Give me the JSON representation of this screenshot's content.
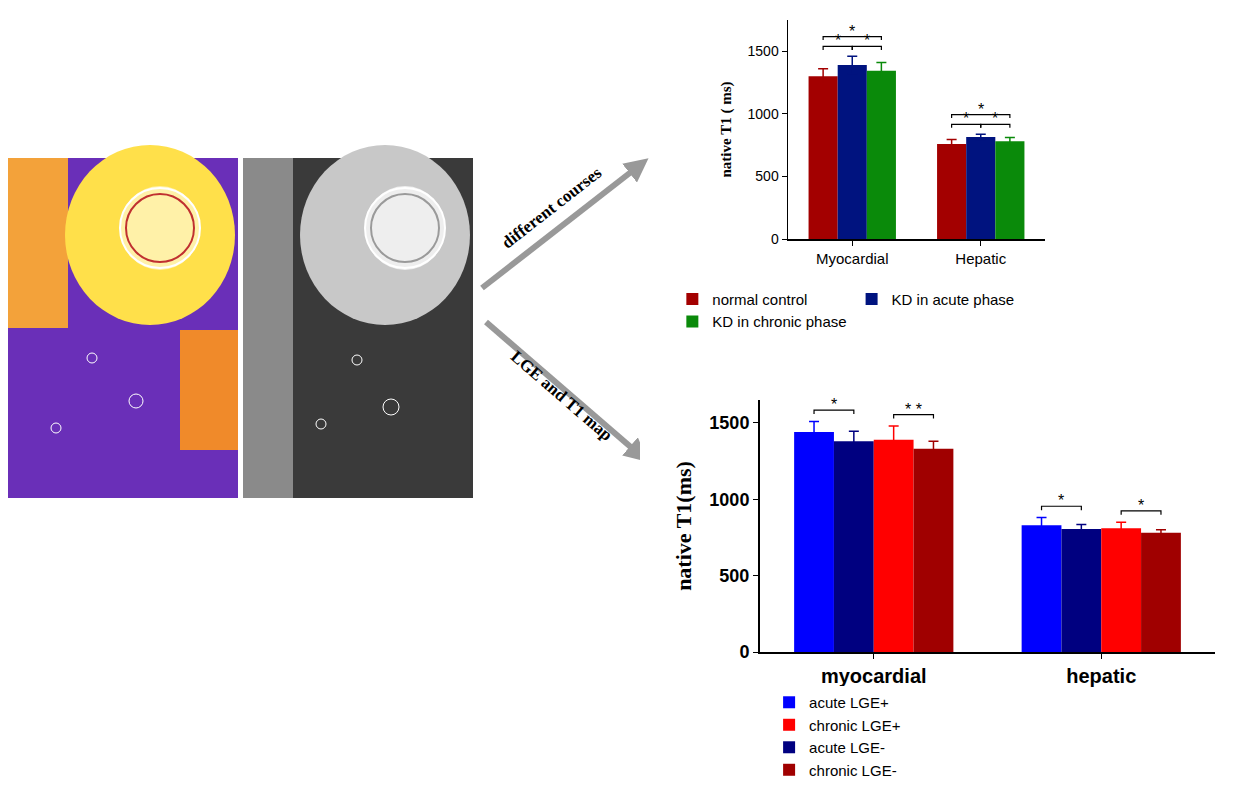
{
  "chart_data": [
    {
      "type": "bar",
      "annotations": [
        "different courses"
      ],
      "ylabel": "native T1 ( ms)",
      "categories": [
        "Myocardial",
        "Hepatic"
      ],
      "series": [
        {
          "name": "normal control",
          "color": "#a30000",
          "values": [
            1300,
            760
          ],
          "error": [
            60,
            35
          ]
        },
        {
          "name": "KD in acute phase",
          "color": "#00137f",
          "values": [
            1390,
            815
          ],
          "error": [
            70,
            22
          ]
        },
        {
          "name": "KD in chronic phase",
          "color": "#0a8a0a",
          "values": [
            1345,
            782
          ],
          "error": [
            65,
            30
          ]
        }
      ],
      "ylim": [
        0,
        1750
      ],
      "yticks": [
        0,
        500,
        1000,
        1500
      ],
      "grid": false,
      "legend": "bottom",
      "significance": [
        {
          "category": "Myocardial",
          "pair": [
            "normal control",
            "KD in acute phase"
          ],
          "label": "*"
        },
        {
          "category": "Myocardial",
          "pair": [
            "KD in acute phase",
            "KD in chronic phase"
          ],
          "label": "*"
        },
        {
          "category": "Myocardial",
          "pair": [
            "normal control",
            "KD in chronic phase"
          ],
          "label": "*"
        },
        {
          "category": "Hepatic",
          "pair": [
            "normal control",
            "KD in acute phase"
          ],
          "label": "*"
        },
        {
          "category": "Hepatic",
          "pair": [
            "KD in acute phase",
            "KD in chronic phase"
          ],
          "label": "*"
        },
        {
          "category": "Hepatic",
          "pair": [
            "normal control",
            "KD in chronic phase"
          ],
          "label": "*"
        }
      ]
    },
    {
      "type": "bar",
      "annotations": [
        "LGE and T1 map"
      ],
      "ylabel": "native T1(ms)",
      "categories": [
        "myocardial",
        "hepatic"
      ],
      "series": [
        {
          "name": "acute LGE+",
          "color": "#0000ff",
          "values": [
            1440,
            830
          ],
          "error": [
            70,
            50
          ]
        },
        {
          "name": "acute LGE-",
          "color": "#000080",
          "values": [
            1380,
            805
          ],
          "error": [
            65,
            30
          ]
        },
        {
          "name": "chronic LGE+",
          "color": "#ff0000",
          "values": [
            1390,
            810
          ],
          "error": [
            90,
            40
          ]
        },
        {
          "name": "chronic LGE-",
          "color": "#a00000",
          "values": [
            1330,
            780
          ],
          "error": [
            50,
            20
          ]
        }
      ],
      "ylim": [
        0,
        1650
      ],
      "yticks": [
        0,
        500,
        1000,
        1500
      ],
      "grid": false,
      "legend": "bottom",
      "significance": [
        {
          "category": "myocardial",
          "pair": [
            "acute LGE+",
            "acute LGE-"
          ],
          "label": "*"
        },
        {
          "category": "myocardial",
          "pair": [
            "chronic LGE+",
            "chronic LGE-"
          ],
          "label": "* *"
        },
        {
          "category": "hepatic",
          "pair": [
            "acute LGE+",
            "acute LGE-"
          ],
          "label": "*"
        },
        {
          "category": "hepatic",
          "pair": [
            "chronic LGE+",
            "chronic LGE-"
          ],
          "label": "*"
        }
      ]
    }
  ]
}
